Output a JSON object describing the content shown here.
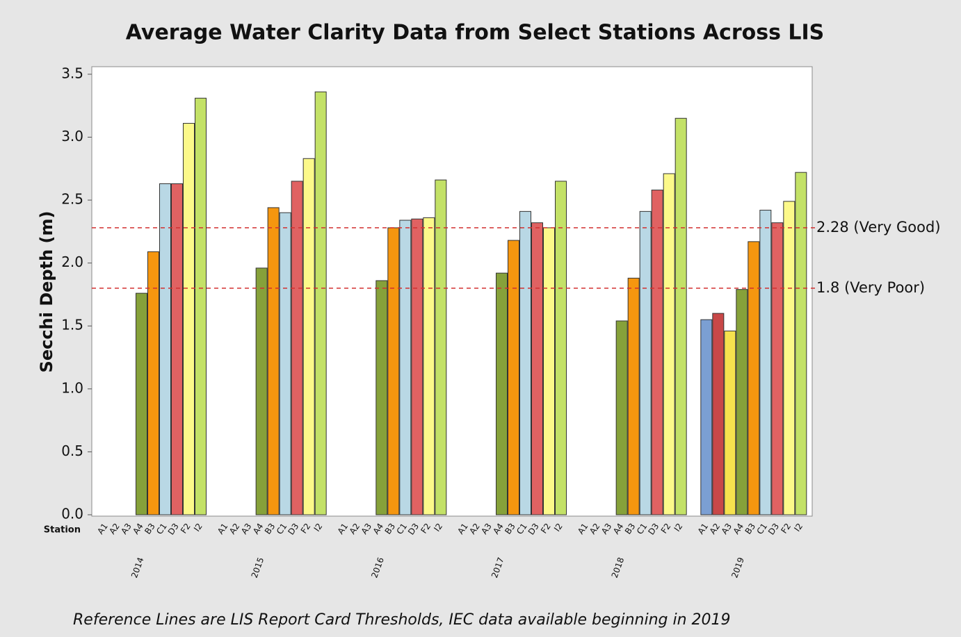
{
  "chart_data": {
    "type": "grouped-bar",
    "title": "Average Water Clarity Data from Select Stations Across LIS",
    "ylabel": "Secchi Depth (m)",
    "xlabel": "Station",
    "footnote": "Reference Lines are LIS Report Card Thresholds, IEC data available beginning in 2019",
    "groups": [
      "2014",
      "2015",
      "2016",
      "2017",
      "2018",
      "2019"
    ],
    "categories": [
      "A1",
      "A2",
      "A3",
      "A4",
      "B3",
      "C1",
      "D3",
      "F2",
      "I2"
    ],
    "colors": [
      "#7b9fd3",
      "#c84848",
      "#f6e24e",
      "#86a13a",
      "#f5960f",
      "#b9d8e5",
      "#e06262",
      "#fcf98a",
      "#c3e167"
    ],
    "values": [
      [
        null,
        null,
        null,
        1.76,
        2.09,
        2.63,
        2.63,
        3.11,
        3.31
      ],
      [
        null,
        null,
        null,
        1.96,
        2.44,
        2.4,
        2.65,
        2.83,
        3.36
      ],
      [
        null,
        null,
        null,
        1.86,
        2.28,
        2.34,
        2.35,
        2.36,
        2.66
      ],
      [
        null,
        null,
        null,
        1.92,
        2.18,
        2.41,
        2.32,
        2.28,
        2.65
      ],
      [
        null,
        null,
        null,
        1.54,
        1.88,
        2.41,
        2.58,
        2.71,
        3.15
      ],
      [
        1.55,
        1.6,
        1.46,
        1.79,
        2.17,
        2.42,
        2.32,
        2.49,
        2.72
      ]
    ],
    "ylim": [
      0,
      3.56
    ],
    "yticks": [
      {
        "value": 0,
        "label": "0.0"
      },
      0.5,
      {
        "value": 1,
        "label": "1.0"
      },
      1.5,
      {
        "value": 2,
        "label": "2.0"
      },
      2.5,
      {
        "value": 3,
        "label": "3.0"
      },
      3.5
    ],
    "reference_lines": [
      {
        "value": 2.28,
        "label": "2.28 (Very Good)"
      },
      {
        "value": 1.8,
        "label": "1.8 (Very Poor)"
      }
    ],
    "reference_color": "#d23030",
    "grid": false
  }
}
